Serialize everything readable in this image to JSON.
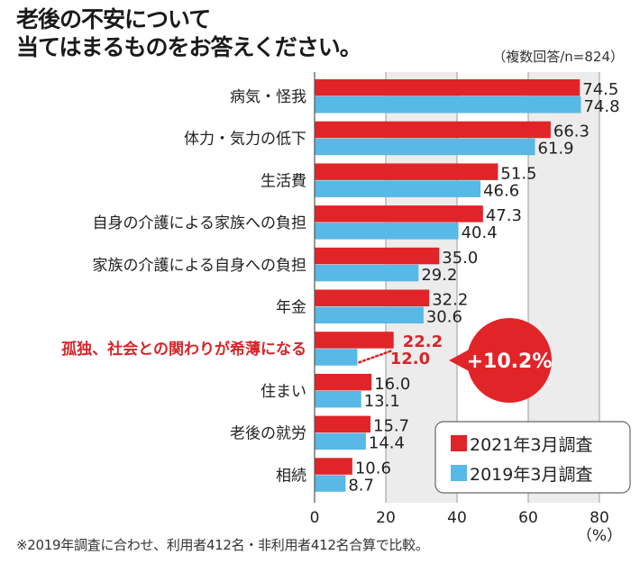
{
  "title_line1": "老後の不安について",
  "title_line2": "当てはまるものをお答えください。",
  "sample_note": "（複数回答/n=824）",
  "footnote": "※2019年調査に合わせ、利用者412名・非利用者412名合算で比較。",
  "callout": {
    "text": "+10.2%",
    "color": "#e12428"
  },
  "chart_data": {
    "type": "bar",
    "orientation": "horizontal",
    "title": "老後の不安について当てはまるものをお答えください。",
    "xlabel": "（%）",
    "xlim": [
      0,
      80
    ],
    "xticks": [
      "0",
      "20",
      "40",
      "60",
      "80"
    ],
    "x_unit_label": "（%）",
    "categories": [
      "病気・怪我",
      "体力・気力の低下",
      "生活費",
      "自身の介護による家族への負担",
      "家族の介護による自身への負担",
      "年金",
      "孤独、社会との関わりが希薄になる",
      "住まい",
      "老後の就労",
      "相続"
    ],
    "highlight_index": 6,
    "series": [
      {
        "name": "2021年3月調査",
        "color": "#e12428",
        "values": [
          74.5,
          66.3,
          51.5,
          47.3,
          35.0,
          32.2,
          22.2,
          16.0,
          15.7,
          10.6
        ],
        "labels": [
          "74.5",
          "66.3",
          "51.5",
          "47.3",
          "35.0",
          "32.2",
          "22.2",
          "16.0",
          "15.7",
          "10.6"
        ]
      },
      {
        "name": "2019年3月調査",
        "color": "#58b8e6",
        "values": [
          74.8,
          61.9,
          46.6,
          40.4,
          29.2,
          30.6,
          12.0,
          13.1,
          14.4,
          8.7
        ],
        "labels": [
          "74.8",
          "61.9",
          "46.6",
          "40.4",
          "29.2",
          "30.6",
          "12.0",
          "13.1",
          "14.4",
          "8.7"
        ]
      }
    ],
    "legend": {
      "placement": "bottom-right",
      "entries": [
        "2021年3月調査",
        "2019年3月調査"
      ]
    },
    "grid": true,
    "shaded_bands": [
      [
        20,
        40
      ],
      [
        60,
        80
      ]
    ],
    "annotation": "+10.2%"
  }
}
